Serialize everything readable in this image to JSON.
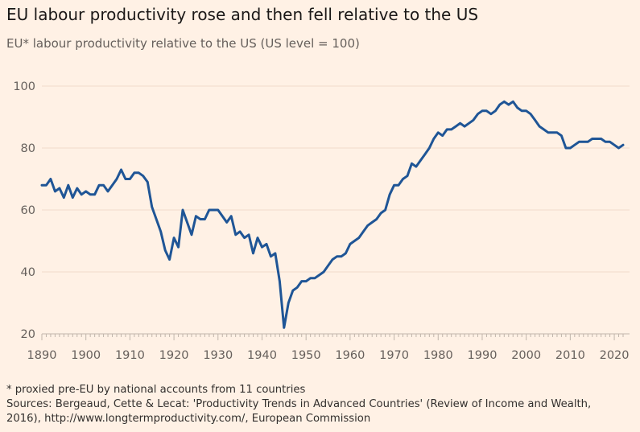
{
  "title": "EU labour productivity rose and then fell relative to the US",
  "subtitle": "EU* labour productivity relative to the US (US level = 100)",
  "footnote": "* proxied pre-EU by national accounts from 11 countries",
  "sources": [
    "Sources: Bergeaud, Cette & Lecat: 'Productivity Trends in Advanced Countries' (Review of Income and Wealth,",
    "2016), http://www.longtermproductivity.com/, European Commission"
  ],
  "colors": {
    "line": "#1f5596",
    "background": "#fff1e5",
    "grid": "#f0dccc",
    "axis": "#c0b5ab"
  },
  "chart_data": {
    "type": "line",
    "xlim": [
      1890,
      2022
    ],
    "ylim": [
      20,
      100
    ],
    "yticks": [
      "20",
      "40",
      "60",
      "80",
      "100"
    ],
    "xticks": [
      "1890",
      "1900",
      "1910",
      "1920",
      "1930",
      "1940",
      "1950",
      "1960",
      "1970",
      "1980",
      "1990",
      "2000",
      "2010",
      "2020"
    ],
    "grid": "horizontal",
    "series": [
      {
        "x": [
          1890,
          1891,
          1892,
          1893,
          1894,
          1895,
          1896,
          1897,
          1898,
          1899,
          1900,
          1901,
          1902,
          1903,
          1904,
          1905,
          1906,
          1907,
          1908,
          1909,
          1910,
          1911,
          1912,
          1913,
          1914,
          1915,
          1916,
          1917,
          1918,
          1919,
          1920,
          1921,
          1922,
          1923,
          1924,
          1925,
          1926,
          1927,
          1928,
          1929,
          1930,
          1931,
          1932,
          1933,
          1934,
          1935,
          1936,
          1937,
          1938,
          1939,
          1940,
          1941,
          1942,
          1943,
          1944,
          1945,
          1946,
          1947,
          1948,
          1949,
          1950,
          1951,
          1952,
          1953,
          1954,
          1955,
          1956,
          1957,
          1958,
          1959,
          1960,
          1961,
          1962,
          1963,
          1964,
          1965,
          1966,
          1967,
          1968,
          1969,
          1970,
          1971,
          1972,
          1973,
          1974,
          1975,
          1976,
          1977,
          1978,
          1979,
          1980,
          1981,
          1982,
          1983,
          1984,
          1985,
          1986,
          1987,
          1988,
          1989,
          1990,
          1991,
          1992,
          1993,
          1994,
          1995,
          1996,
          1997,
          1998,
          1999,
          2000,
          2001,
          2002,
          2003,
          2004,
          2005,
          2006,
          2007,
          2008,
          2009,
          2010,
          2011,
          2012,
          2013,
          2014,
          2015,
          2016,
          2017,
          2018,
          2019,
          2020,
          2021,
          2022
        ],
        "values": [
          68,
          68,
          70,
          66,
          67,
          64,
          68,
          64,
          67,
          65,
          66,
          65,
          65,
          68,
          68,
          66,
          68,
          70,
          73,
          70,
          70,
          72,
          72,
          71,
          69,
          61,
          57,
          53,
          47,
          44,
          51,
          48,
          60,
          56,
          52,
          58,
          57,
          57,
          60,
          60,
          60,
          58,
          56,
          58,
          52,
          53,
          51,
          52,
          46,
          51,
          48,
          49,
          45,
          46,
          37,
          22,
          30,
          34,
          35,
          37,
          37,
          38,
          38,
          39,
          40,
          42,
          44,
          45,
          45,
          46,
          49,
          50,
          51,
          53,
          55,
          56,
          57,
          59,
          60,
          65,
          68,
          68,
          70,
          71,
          75,
          74,
          76,
          78,
          80,
          83,
          85,
          84,
          86,
          86,
          87,
          88,
          87,
          88,
          89,
          91,
          92,
          92,
          91,
          92,
          94,
          95,
          94,
          95,
          93,
          92,
          92,
          91,
          89,
          87,
          86,
          85,
          85,
          85,
          84,
          80,
          80,
          81,
          82,
          82,
          82,
          83,
          83,
          83,
          82,
          82,
          81,
          80,
          81
        ]
      }
    ]
  }
}
